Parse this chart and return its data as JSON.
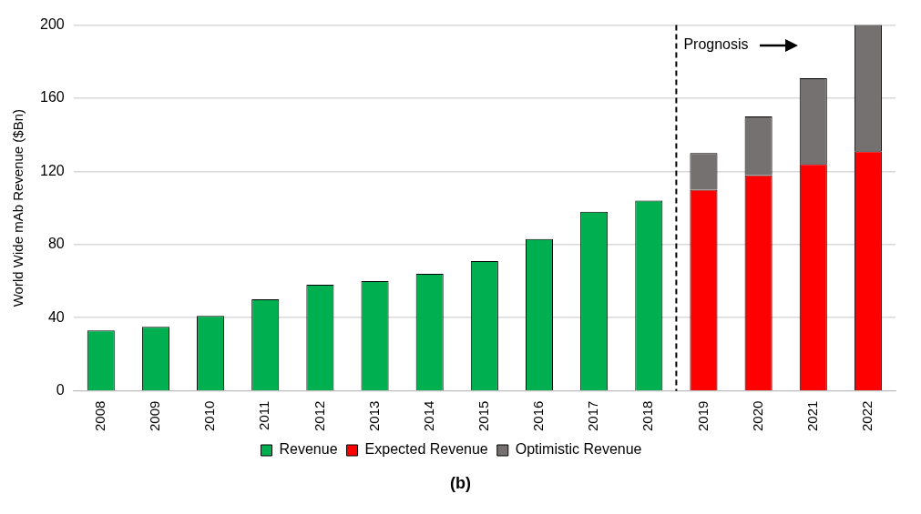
{
  "chart_data": {
    "type": "bar",
    "ylabel": "World Wide mAb Revenue ($Bn)",
    "categories": [
      "2008",
      "2009",
      "2010",
      "2011",
      "2012",
      "2013",
      "2014",
      "2015",
      "2016",
      "2017",
      "2018",
      "2019",
      "2020",
      "2021",
      "2022"
    ],
    "series": [
      {
        "name": "Revenue",
        "color": "#00b050",
        "values": [
          33,
          35,
          41,
          50,
          58,
          60,
          64,
          71,
          83,
          98,
          104,
          null,
          null,
          null,
          null
        ]
      },
      {
        "name": "Expected Revenue",
        "color": "#ff0000",
        "values": [
          null,
          null,
          null,
          null,
          null,
          null,
          null,
          null,
          null,
          null,
          null,
          110,
          118,
          124,
          131
        ]
      },
      {
        "name": "Optimistic Revenue",
        "color": "#767171",
        "values": [
          null,
          null,
          null,
          null,
          null,
          null,
          null,
          null,
          null,
          null,
          null,
          20,
          32,
          47,
          69
        ]
      }
    ],
    "stacked": true,
    "ylim": [
      0,
      200
    ],
    "yticks": [
      0,
      40,
      80,
      120,
      160,
      200
    ],
    "grid": "y",
    "legend": "bottom",
    "ref_lines": [
      {
        "axis": "x",
        "value": "2019",
        "label": "Prognosis",
        "line_style": "dashed",
        "color": "#000000"
      }
    ],
    "annotations": [
      "(b)"
    ]
  }
}
